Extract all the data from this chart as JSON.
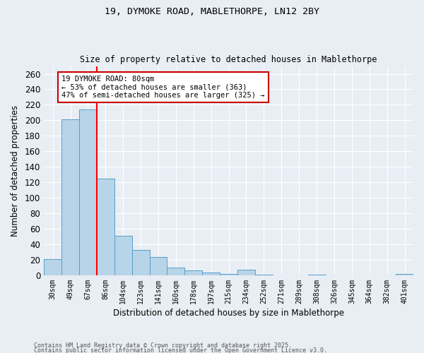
{
  "title_line1": "19, DYMOKE ROAD, MABLETHORPE, LN12 2BY",
  "title_line2": "Size of property relative to detached houses in Mablethorpe",
  "xlabel": "Distribution of detached houses by size in Mablethorpe",
  "ylabel": "Number of detached properties",
  "categories": [
    "30sqm",
    "49sqm",
    "67sqm",
    "86sqm",
    "104sqm",
    "123sqm",
    "141sqm",
    "160sqm",
    "178sqm",
    "197sqm",
    "215sqm",
    "234sqm",
    "252sqm",
    "271sqm",
    "289sqm",
    "308sqm",
    "326sqm",
    "345sqm",
    "364sqm",
    "382sqm",
    "401sqm"
  ],
  "values": [
    21,
    201,
    214,
    125,
    51,
    33,
    24,
    10,
    6,
    4,
    2,
    7,
    1,
    0,
    0,
    1,
    0,
    0,
    0,
    0,
    2
  ],
  "bar_color": "#b8d4e8",
  "bar_edge_color": "#5a9ec9",
  "red_line_index": 2,
  "annotation_text": "19 DYMOKE ROAD: 80sqm\n← 53% of detached houses are smaller (363)\n47% of semi-detached houses are larger (325) →",
  "annotation_box_color": "#ffffff",
  "annotation_box_edge": "#cc0000",
  "ylim": [
    0,
    270
  ],
  "yticks": [
    0,
    20,
    40,
    60,
    80,
    100,
    120,
    140,
    160,
    180,
    200,
    220,
    240,
    260
  ],
  "footnote_line1": "Contains HM Land Registry data © Crown copyright and database right 2025.",
  "footnote_line2": "Contains public sector information licensed under the Open Government Licence v3.0.",
  "bg_color": "#e8eef4",
  "grid_color": "#ffffff"
}
